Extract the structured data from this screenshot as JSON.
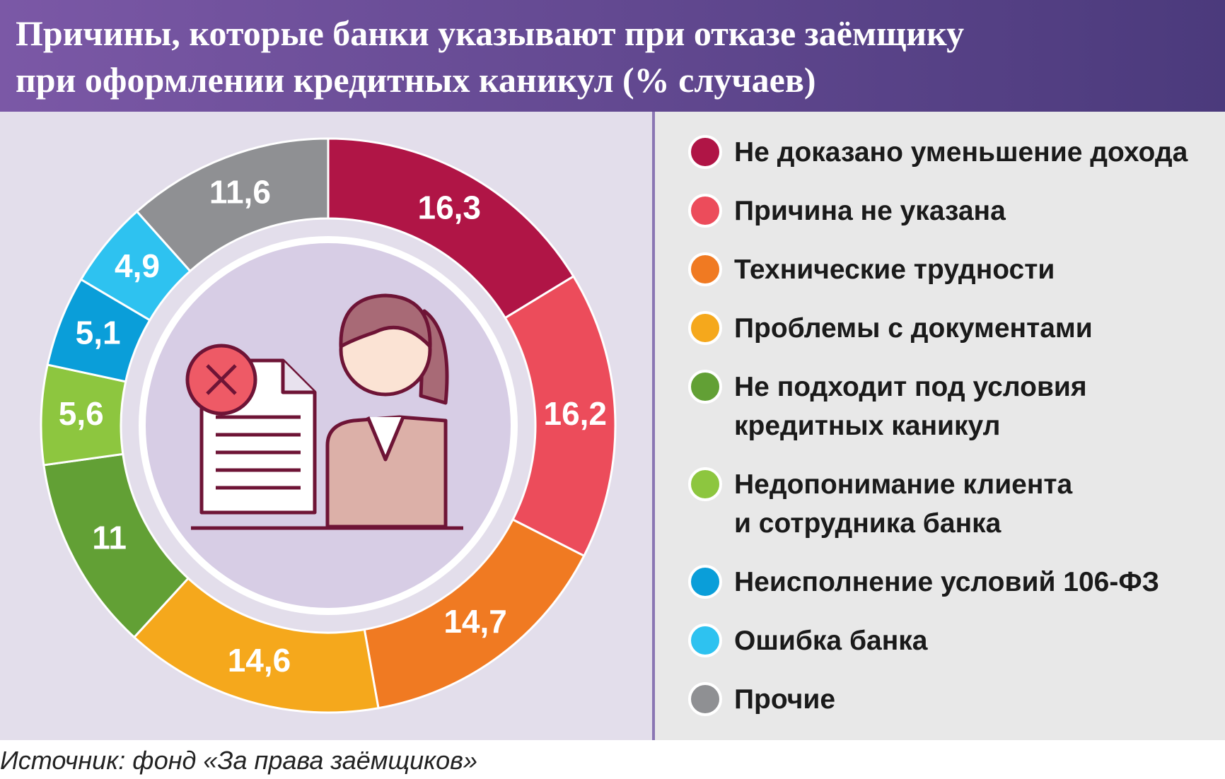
{
  "chart_data": {
    "type": "pie",
    "title": "Причины, которые банки указывают при отказе заёмщику\nпри оформлении кредитных каникул (% случаев)",
    "categories": [
      "Не доказано уменьшение дохода",
      "Причина не указана",
      "Технические трудности",
      "Проблемы с документами",
      "Не подходит под условия\nкредитных каникул",
      "Недопонимание клиента\nи сотрудника банка",
      "Неисполнение условий 106-ФЗ",
      "Ошибка банка",
      "Прочие"
    ],
    "values": [
      16.3,
      16.2,
      14.7,
      14.6,
      11,
      5.6,
      5.1,
      4.9,
      11.6
    ],
    "value_labels": [
      "16,3",
      "16,2",
      "14,7",
      "14,6",
      "11",
      "5,6",
      "5,1",
      "4,9",
      "11,6"
    ],
    "colors": [
      "#b01546",
      "#ec4c5b",
      "#f07a22",
      "#f5a81c",
      "#62a035",
      "#8dc63f",
      "#0a9ed9",
      "#2ec2f0",
      "#8f9093"
    ],
    "source": "Источник: фонд «За права заёмщиков»"
  }
}
